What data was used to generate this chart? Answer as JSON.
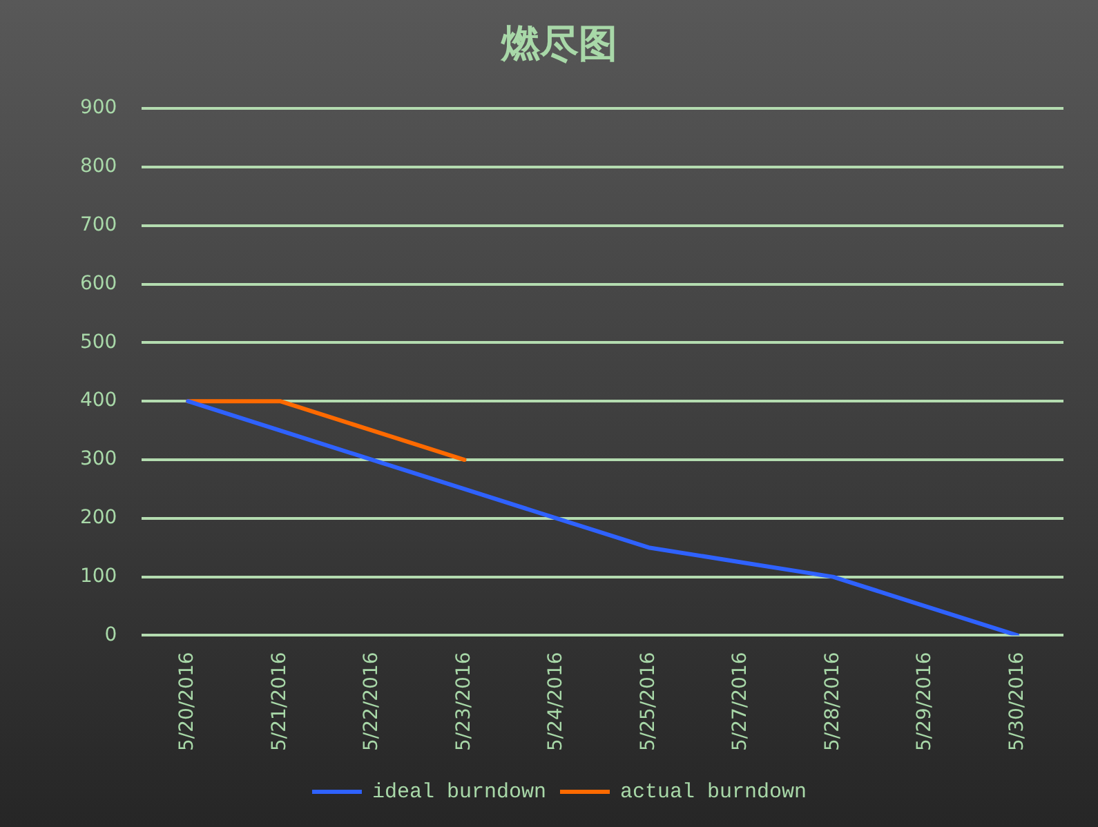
{
  "chart_data": {
    "type": "line",
    "title": "燃尽图",
    "categories": [
      "5/20/2016",
      "5/21/2016",
      "5/22/2016",
      "5/23/2016",
      "5/24/2016",
      "5/25/2016",
      "5/27/2016",
      "5/28/2016",
      "5/29/2016",
      "5/30/2016"
    ],
    "series": [
      {
        "name": "ideal burndown",
        "color": "#2f62ff",
        "values": [
          400,
          350,
          300,
          250,
          200,
          150,
          125,
          100,
          50,
          0
        ]
      },
      {
        "name": "actual burndown",
        "color": "#ff6a00",
        "values": [
          400,
          400,
          350,
          300,
          null,
          null,
          null,
          null,
          null,
          null
        ]
      }
    ],
    "ylim": [
      0,
      900
    ],
    "yticks": [
      0,
      100,
      200,
      300,
      400,
      500,
      600,
      700,
      800,
      900
    ],
    "grid": "y",
    "legend": "bottom",
    "marker": "none",
    "line_style": "solid"
  }
}
